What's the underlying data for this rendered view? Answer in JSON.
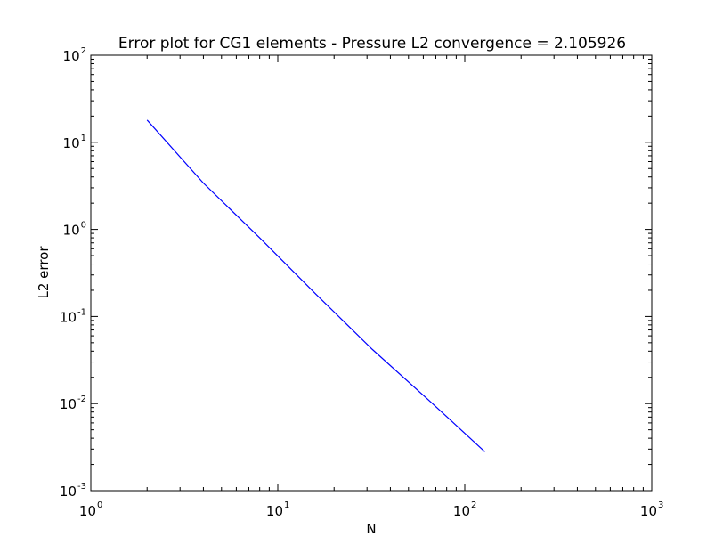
{
  "chart_data": {
    "type": "line",
    "title": "Error plot for CG1 elements - Pressure L2 convergence = 2.105926",
    "xlabel": "N",
    "ylabel": "L2 error",
    "xscale": "log",
    "yscale": "log",
    "xlim": [
      1,
      1000
    ],
    "ylim": [
      0.001,
      100
    ],
    "grid": false,
    "x_ticks": [
      {
        "base": "10",
        "exp": "0"
      },
      {
        "base": "10",
        "exp": "1"
      },
      {
        "base": "10",
        "exp": "2"
      },
      {
        "base": "10",
        "exp": "3"
      }
    ],
    "y_ticks": [
      {
        "base": "10",
        "exp": "-3"
      },
      {
        "base": "10",
        "exp": "-2"
      },
      {
        "base": "10",
        "exp": "-1"
      },
      {
        "base": "10",
        "exp": "0"
      },
      {
        "base": "10",
        "exp": "1"
      },
      {
        "base": "10",
        "exp": "2"
      }
    ],
    "series": [
      {
        "color": "#0000ff",
        "x": [
          2,
          4,
          8,
          16,
          32,
          64,
          128
        ],
        "y": [
          18.0,
          3.4,
          0.8,
          0.18,
          0.042,
          0.011,
          0.0028
        ]
      }
    ]
  }
}
